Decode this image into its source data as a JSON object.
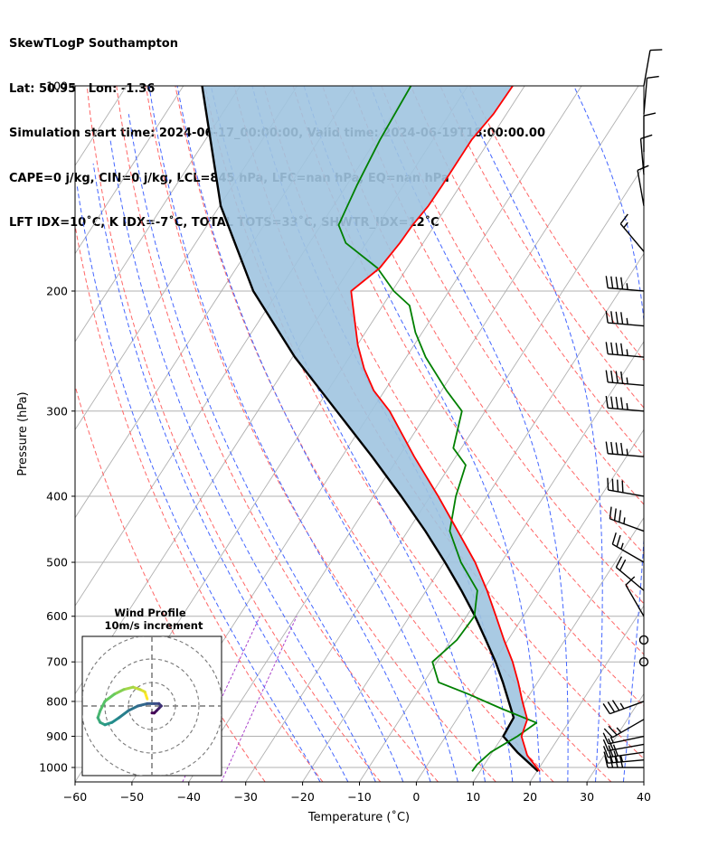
{
  "header": {
    "line1": "SkewTLogP Southampton",
    "line2": "Lat: 50.95   Lon: -1.36",
    "line3": "Simulation start time: 2024-06-17_00:00:00, Valid time: 2024-06-19T18:00:00.00",
    "line4": "CAPE=0 j/kg, CIN=0 j/kg, LCL=845 hPa, LFC=nan hPa, EQ=nan hPa",
    "line5": "LFT IDX=10˚C, K IDX=-7˚C, TOTAL TOTS=33˚C, SHWTR_IDX=12˚C"
  },
  "chart_data": {
    "type": "line",
    "xlabel": "Temperature (˚C)",
    "ylabel": "Pressure (hPa)",
    "xlim": [
      -60,
      40
    ],
    "ylim": [
      1050,
      100
    ],
    "y_scale": "log",
    "skew": true,
    "grid": true,
    "x_ticks": [
      -60,
      -50,
      -40,
      -30,
      -20,
      -10,
      0,
      10,
      20,
      30,
      40
    ],
    "x_tick_labels": [
      "−60",
      "−50",
      "−40",
      "−30",
      "−20",
      "−10",
      "0",
      "10",
      "20",
      "30",
      "40"
    ],
    "y_ticks": [
      1000,
      900,
      800,
      700,
      600,
      500,
      400,
      300,
      200,
      100
    ],
    "y_tick_labels": [
      "1000",
      "900",
      "800",
      "700",
      "600",
      "500",
      "400",
      "300",
      "200",
      "100"
    ],
    "colors": {
      "temperature": "#ff0000",
      "dewpoint": "#008000",
      "parcel": "#000000",
      "shade": "#a0c4e0",
      "dry_adiabat": "#ff6666",
      "moist_adiabat": "#4466ff",
      "mixing_ratio": "#aa44cc",
      "isotherm": "#b0b0b0"
    },
    "series": [
      {
        "key": "temperature",
        "p": [
          1013,
          960,
          900,
          850,
          800,
          750,
          700,
          650,
          600,
          550,
          500,
          450,
          400,
          350,
          300,
          280,
          260,
          240,
          220,
          200,
          185,
          170,
          160,
          150,
          140,
          130,
          120,
          110,
          100
        ],
        "t": [
          20.5,
          16.5,
          13.3,
          12.4,
          9.5,
          6.6,
          3.3,
          -0.7,
          -4.8,
          -9.3,
          -14.6,
          -21.2,
          -28.6,
          -37.3,
          -46.8,
          -51.9,
          -56.1,
          -59.9,
          -63.4,
          -67.2,
          -64.8,
          -64.1,
          -63.9,
          -63.3,
          -63.2,
          -63.2,
          -63.2,
          -62.3,
          -62.1
        ]
      },
      {
        "key": "dewpoint",
        "p": [
          1013,
          990,
          950,
          900,
          860,
          820,
          780,
          750,
          700,
          650,
          600,
          550,
          500,
          450,
          400,
          360,
          340,
          300,
          280,
          250,
          230,
          210,
          200,
          185,
          170,
          160,
          140,
          120,
          100
        ],
        "t": [
          8.6,
          8.7,
          9.7,
          12.6,
          14.4,
          6.7,
          -0.9,
          -7.4,
          -10.8,
          -9.0,
          -8.6,
          -11.0,
          -17.1,
          -22.6,
          -25.5,
          -27.3,
          -31.4,
          -34.1,
          -39.1,
          -46.6,
          -51.2,
          -55.3,
          -59.7,
          -65.2,
          -73.6,
          -76.9,
          -78.2,
          -79.3,
          -80.0
        ]
      },
      {
        "key": "parcel",
        "p": [
          1013,
          950,
          900,
          845,
          800,
          750,
          700,
          650,
          600,
          550,
          500,
          450,
          400,
          350,
          300,
          250,
          200,
          150,
          100
        ],
        "t": [
          20.2,
          14.4,
          10.1,
          9.8,
          7.1,
          3.9,
          0.3,
          -3.9,
          -8.5,
          -13.8,
          -19.9,
          -26.9,
          -35.1,
          -44.7,
          -56.1,
          -69.6,
          -84.4,
          -99.8,
          -116.7
        ]
      }
    ],
    "dry_adiabats_theta_c": [
      -30,
      -20,
      -10,
      0,
      10,
      20,
      30,
      40,
      50,
      60,
      70,
      80,
      90,
      100,
      110,
      120
    ],
    "moist_adiabats_t1000_c": [
      -20,
      -15,
      -10,
      -5,
      0,
      5,
      10,
      15,
      20,
      25,
      30,
      35,
      40
    ],
    "mixing_ratio_lines_gkg": [
      0.1,
      0.2
    ],
    "wind_barbs": {
      "p": [
        1000,
        975,
        950,
        925,
        900,
        850,
        800,
        700,
        650,
        600,
        550,
        500,
        450,
        400,
        350,
        300,
        275,
        250,
        225,
        200,
        175,
        150,
        135,
        125,
        110,
        100
      ],
      "speed_kt": [
        40,
        35,
        30,
        20,
        15,
        25,
        35,
        0,
        0,
        10,
        20,
        25,
        35,
        40,
        45,
        45,
        45,
        45,
        45,
        45,
        15,
        10,
        10,
        10,
        10,
        10
      ],
      "direction_deg": [
        270,
        265,
        262,
        260,
        258,
        240,
        250,
        0,
        0,
        330,
        310,
        300,
        290,
        280,
        275,
        275,
        275,
        275,
        275,
        275,
        320,
        350,
        355,
        0,
        5,
        10
      ]
    },
    "inset": {
      "title_line1": "Wind Profile",
      "title_line2": "10m/s increment",
      "rings_ms": [
        10,
        20,
        30
      ],
      "u_ms": [
        -2,
        -3,
        -5,
        -8,
        -12,
        -16,
        -20,
        -22,
        -23,
        -22,
        -20,
        -17,
        -14,
        -10,
        -6,
        -2,
        1,
        3,
        4,
        3,
        2,
        1,
        0
      ],
      "v_ms": [
        3,
        6,
        7,
        8,
        7,
        5,
        2,
        -2,
        -5,
        -7,
        -8,
        -7,
        -5,
        -2,
        0,
        1,
        1,
        1,
        0,
        -1,
        -2,
        -3,
        -3
      ]
    }
  }
}
